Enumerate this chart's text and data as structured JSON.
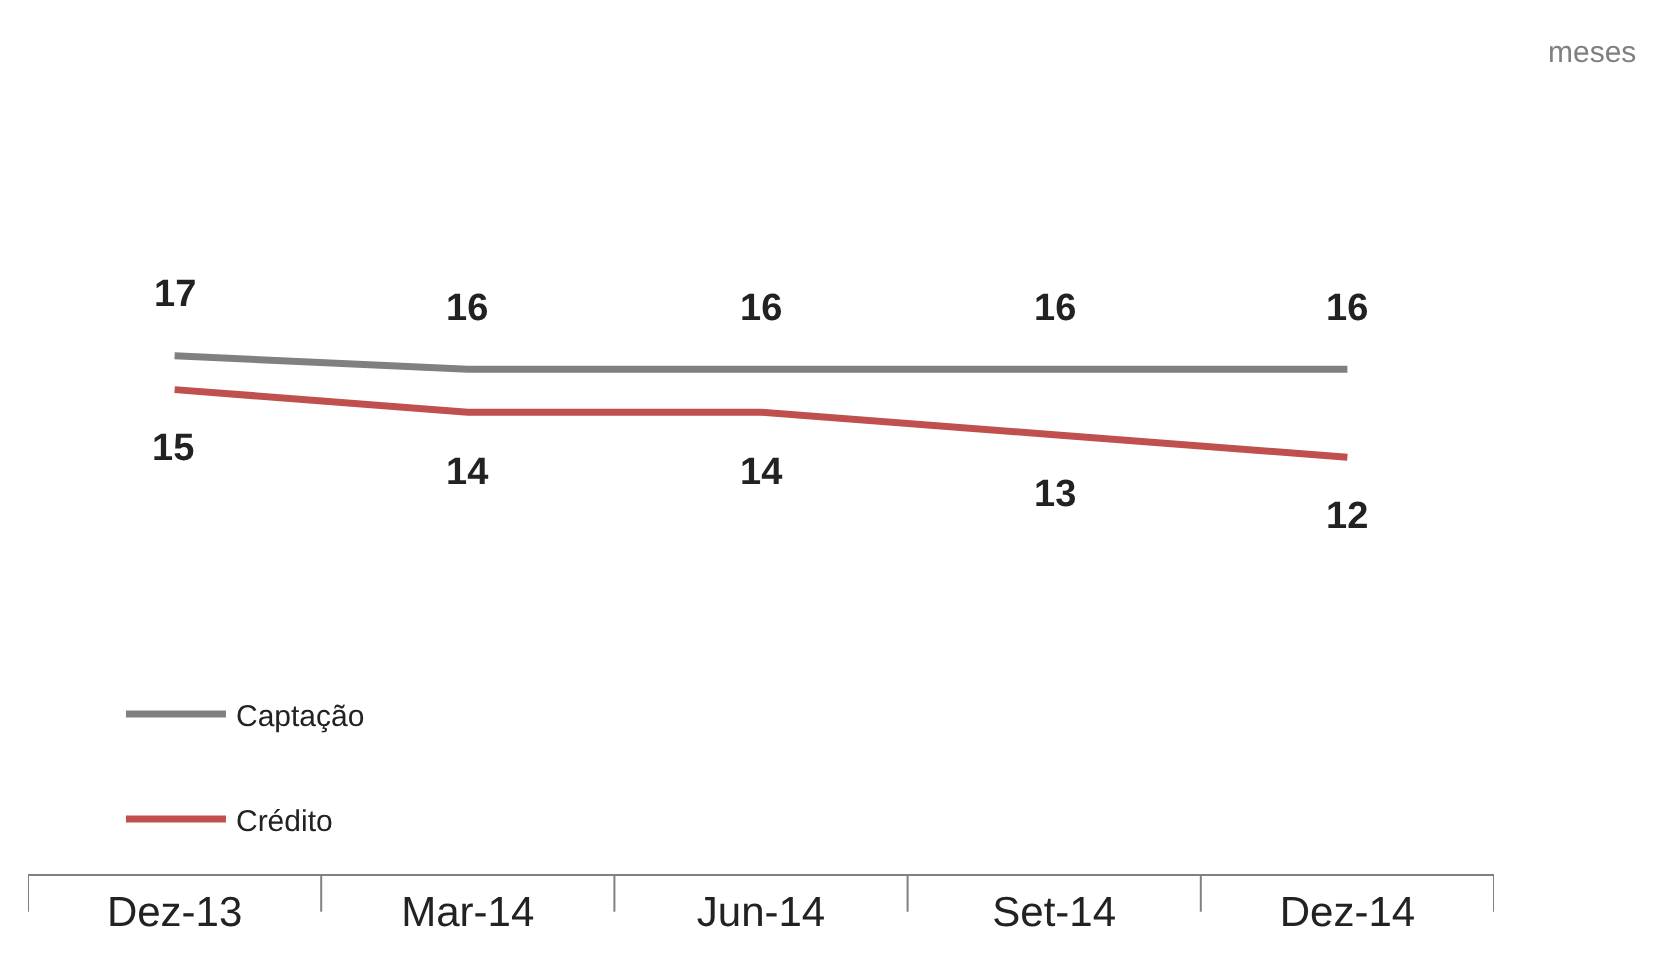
{
  "chart_data": {
    "type": "line",
    "categories": [
      "Dez-13",
      "Mar-14",
      "Jun-14",
      "Set-14",
      "Dez-14"
    ],
    "series": [
      {
        "name": "Captação",
        "color": "#808080",
        "values": [
          16.5,
          15.9,
          15.9,
          15.9,
          15.9
        ],
        "value_labels": [
          "17",
          "16",
          "16",
          "16",
          "16"
        ]
      },
      {
        "name": "Crédito",
        "color": "#c0504d",
        "values": [
          15.0,
          14.0,
          14.0,
          13.0,
          12.0
        ],
        "value_labels": [
          "15",
          "14",
          "14",
          "13",
          "12"
        ]
      }
    ],
    "tick_labels": "x",
    "legend": "bottom left",
    "marker": "none",
    "line_style": "solid",
    "annotations": [
      "meses"
    ]
  }
}
